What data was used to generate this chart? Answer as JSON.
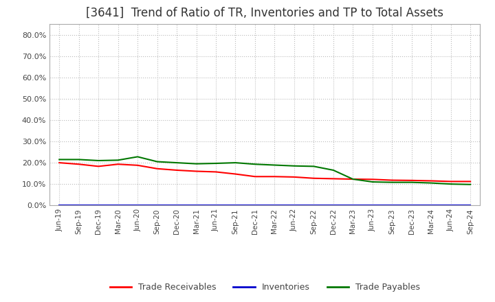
{
  "title": "[3641]  Trend of Ratio of TR, Inventories and TP to Total Assets",
  "x_labels": [
    "Jun-19",
    "Sep-19",
    "Dec-19",
    "Mar-20",
    "Jun-20",
    "Sep-20",
    "Dec-20",
    "Mar-21",
    "Jun-21",
    "Sep-21",
    "Dec-21",
    "Mar-22",
    "Jun-22",
    "Sep-22",
    "Dec-22",
    "Mar-23",
    "Jun-23",
    "Sep-23",
    "Dec-23",
    "Mar-24",
    "Jun-24",
    "Sep-24"
  ],
  "trade_receivables": [
    0.2,
    0.193,
    0.183,
    0.193,
    0.188,
    0.172,
    0.165,
    0.16,
    0.157,
    0.147,
    0.135,
    0.135,
    0.133,
    0.127,
    0.125,
    0.123,
    0.122,
    0.118,
    0.117,
    0.115,
    0.112,
    0.112
  ],
  "inventories": [
    0.001,
    0.001,
    0.001,
    0.001,
    0.001,
    0.001,
    0.001,
    0.001,
    0.001,
    0.001,
    0.001,
    0.001,
    0.001,
    0.001,
    0.001,
    0.001,
    0.001,
    0.001,
    0.001,
    0.001,
    0.001,
    0.001
  ],
  "trade_payables": [
    0.215,
    0.215,
    0.21,
    0.212,
    0.228,
    0.205,
    0.2,
    0.195,
    0.197,
    0.2,
    0.193,
    0.189,
    0.185,
    0.183,
    0.165,
    0.123,
    0.11,
    0.108,
    0.108,
    0.105,
    0.1,
    0.098
  ],
  "tr_color": "#FF0000",
  "inv_color": "#0000CC",
  "tp_color": "#007700",
  "ylim": [
    0.0,
    0.85
  ],
  "yticks": [
    0.0,
    0.1,
    0.2,
    0.3,
    0.4,
    0.5,
    0.6,
    0.7,
    0.8
  ],
  "bg_color": "#FFFFFF",
  "plot_bg_color": "#FFFFFF",
  "grid_color": "#BBBBBB",
  "title_fontsize": 12,
  "title_color": "#333333",
  "tick_color": "#444444",
  "legend_labels": [
    "Trade Receivables",
    "Inventories",
    "Trade Payables"
  ]
}
